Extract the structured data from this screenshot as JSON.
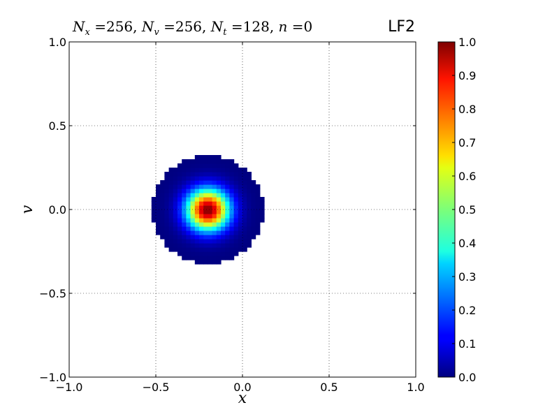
{
  "chart_data": {
    "type": "heatmap",
    "title": "N_x = 256, N_v = 256, N_t = 128, n = 0",
    "title_parts": {
      "nx_label": "N",
      "nx_sub": "x",
      "nx_value": "256",
      "nv_label": "N",
      "nv_sub": "v",
      "nv_value": "256",
      "nt_label": "N",
      "nt_sub": "t",
      "nt_value": "128",
      "n_label": "n",
      "n_value": "0"
    },
    "method_label": "LF2",
    "xlabel": "x",
    "ylabel": "v",
    "xlim": [
      -1.0,
      1.0
    ],
    "ylim": [
      -1.0,
      1.0
    ],
    "x_ticks": [
      "−1.0",
      "−0.5",
      "0.0",
      "0.5",
      "1.0"
    ],
    "x_tick_values": [
      -1.0,
      -0.5,
      0.0,
      0.5,
      1.0
    ],
    "y_ticks": [
      "−1.0",
      "−0.5",
      "0.0",
      "0.5",
      "1.0"
    ],
    "y_tick_values": [
      -1.0,
      -0.5,
      0.0,
      0.5,
      1.0
    ],
    "grid": true,
    "colormap": "jet",
    "colorbar": {
      "range": [
        0.0,
        1.0
      ],
      "ticks": [
        "0.0",
        "0.1",
        "0.2",
        "0.3",
        "0.4",
        "0.5",
        "0.6",
        "0.7",
        "0.8",
        "0.9",
        "1.0"
      ],
      "tick_values": [
        0.0,
        0.1,
        0.2,
        0.3,
        0.4,
        0.5,
        0.6,
        0.7,
        0.8,
        0.9,
        1.0
      ]
    },
    "distribution": {
      "shape": "gaussian disk (values outside radius not plotted)",
      "center_x": -0.2,
      "center_v": 0.0,
      "support_radius": 0.32,
      "peak_value": 1.0
    }
  }
}
